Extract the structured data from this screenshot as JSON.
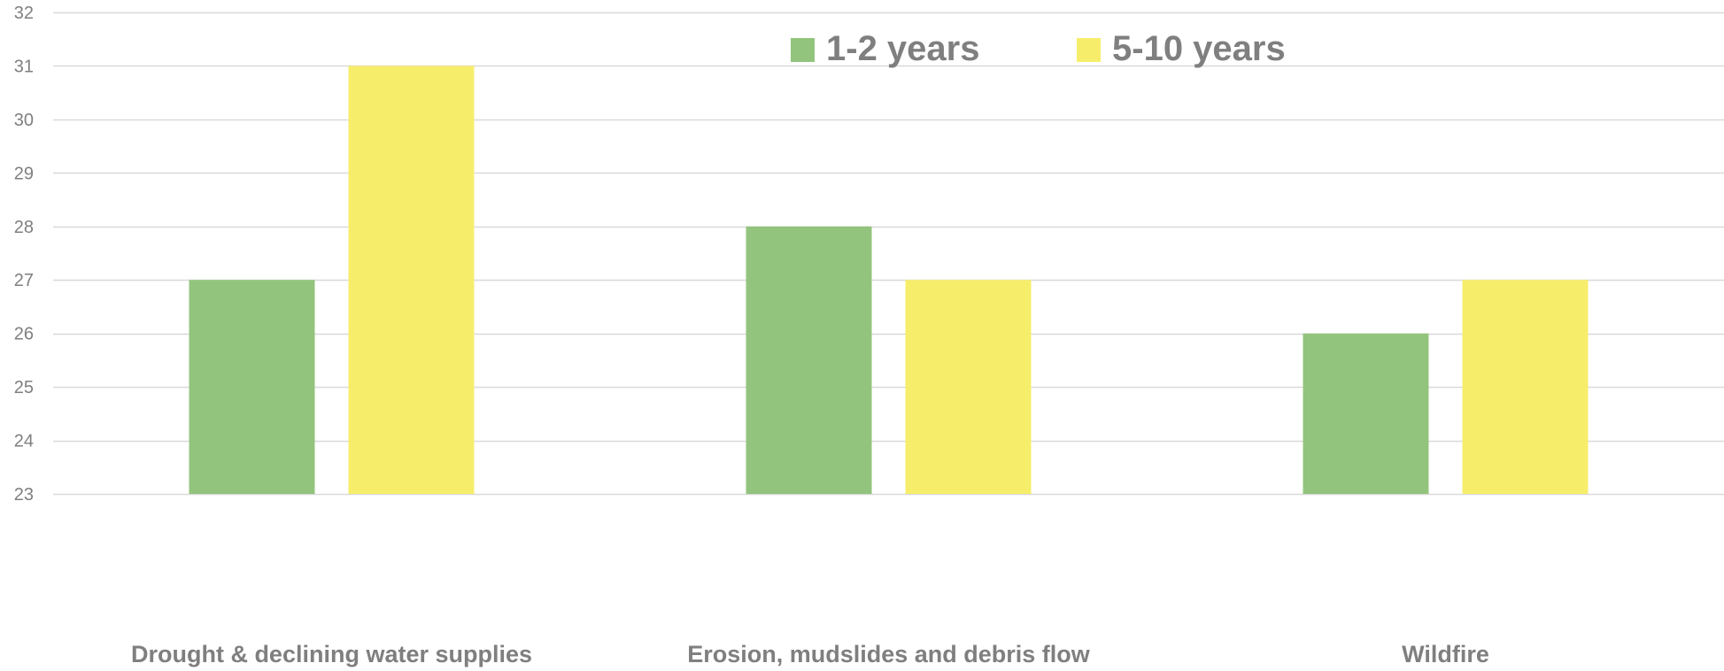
{
  "chart_data": {
    "type": "bar",
    "categories": [
      "Drought & declining water supplies",
      "Erosion, mudslides and debris flow",
      "Wildfire"
    ],
    "series": [
      {
        "name": "1-2 years",
        "values": [
          27,
          28,
          26
        ],
        "color": "#93c47d"
      },
      {
        "name": "5-10 years",
        "values": [
          31,
          27,
          27
        ],
        "color": "#f6ee6b"
      }
    ],
    "title": "",
    "xlabel": "",
    "ylabel": "",
    "ylim": [
      23,
      32
    ],
    "yticks": [
      "23",
      "24",
      "25",
      "26",
      "27",
      "28",
      "29",
      "30",
      "31",
      "32"
    ],
    "grid": true,
    "legend_position": "top-center",
    "gridline_color": "#d9d9d9",
    "text_color": "#7f7f7f"
  }
}
